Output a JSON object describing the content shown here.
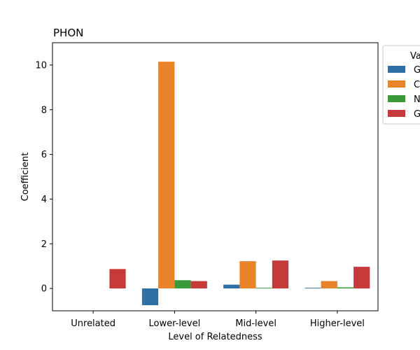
{
  "chart_data": {
    "type": "bar",
    "title": "PHON",
    "xlabel": "Level of Relatedness",
    "ylabel": "Coefficient",
    "categories": [
      "Unrelated",
      "Lower-level",
      "Mid-level",
      "Higher-level"
    ],
    "ylim": [
      -1.0,
      11.0
    ],
    "yticks": [
      0,
      2,
      4,
      6,
      8,
      10
    ],
    "grid": false,
    "legend": {
      "title": "Va",
      "placement": "outside-top-right",
      "labels": [
        "G",
        "C",
        "N",
        "G"
      ]
    },
    "series": [
      {
        "name": "G",
        "color": "#2f6fa3",
        "values": [
          null,
          -0.75,
          0.17,
          0.03
        ]
      },
      {
        "name": "C",
        "color": "#e8832a",
        "values": [
          null,
          10.15,
          1.22,
          0.33
        ]
      },
      {
        "name": "N",
        "color": "#3a9a3a",
        "values": [
          null,
          0.37,
          0.03,
          0.05
        ]
      },
      {
        "name": "G",
        "color": "#c73a3a",
        "values": [
          0.87,
          0.33,
          1.25,
          0.97
        ]
      }
    ]
  }
}
